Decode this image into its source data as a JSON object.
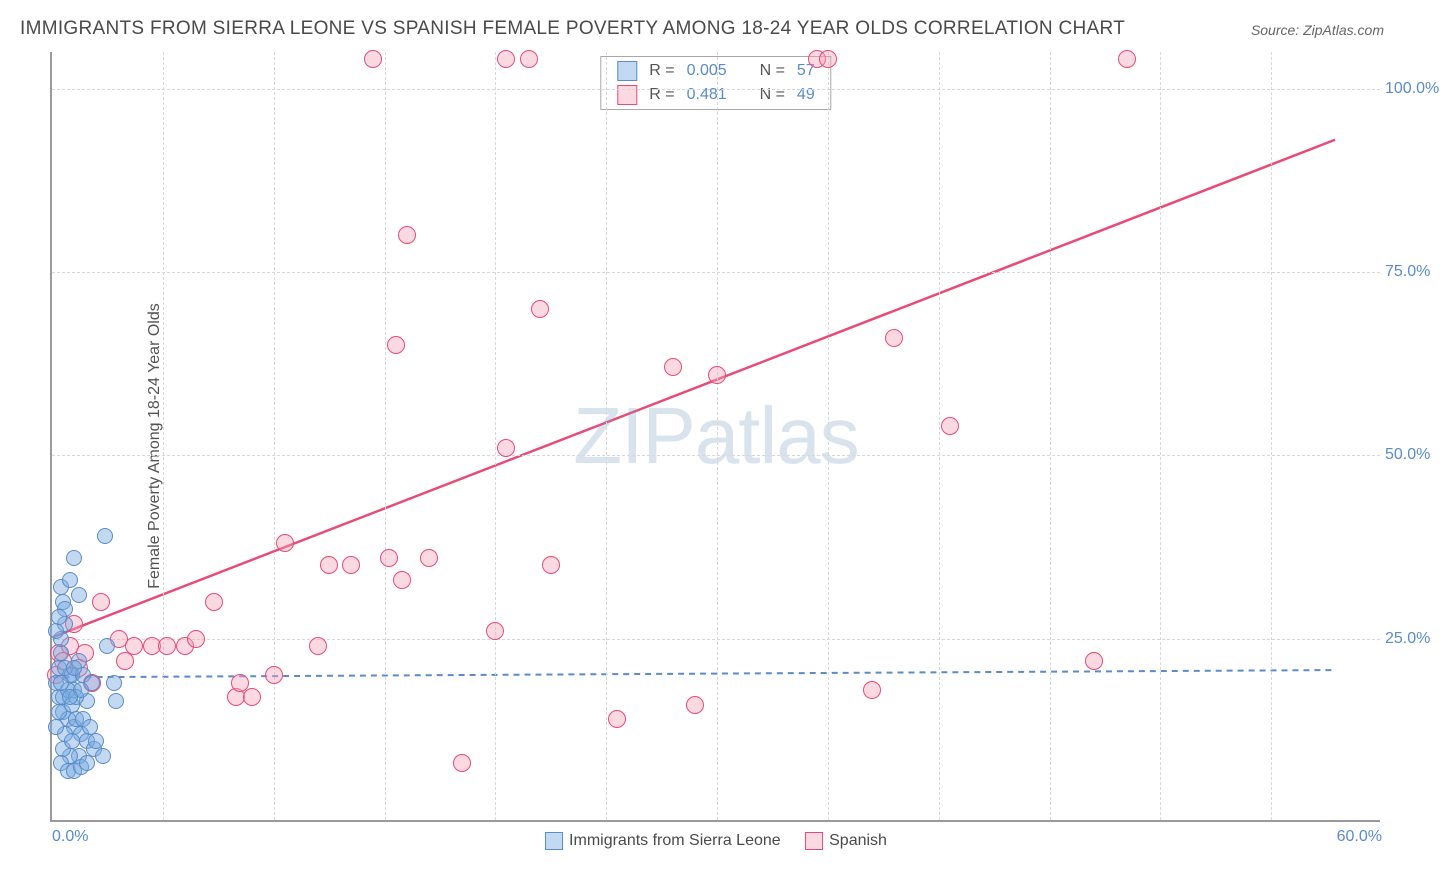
{
  "title": "IMMIGRANTS FROM SIERRA LEONE VS SPANISH FEMALE POVERTY AMONG 18-24 YEAR OLDS CORRELATION CHART",
  "source_label": "Source: ZipAtlas.com",
  "y_axis_title": "Female Poverty Among 18-24 Year Olds",
  "watermark_zip": "ZIP",
  "watermark_atlas": "atlas",
  "chart": {
    "type": "scatter",
    "xlim": [
      0,
      60
    ],
    "ylim": [
      0,
      105
    ],
    "yticks": [
      25,
      50,
      75,
      100
    ],
    "ytick_labels": [
      "25.0%",
      "50.0%",
      "75.0%",
      "100.0%"
    ],
    "xticks": [
      0,
      60
    ],
    "xtick_labels": [
      "0.0%",
      "60.0%"
    ],
    "x_minor_gridlines": [
      5,
      10,
      15,
      20,
      25,
      30,
      35,
      40,
      45,
      50,
      55
    ],
    "grid_color": "#d8d8d8",
    "background_color": "#ffffff",
    "axis_color": "#9a9a9a",
    "tick_label_color": "#5b8bc9",
    "tick_fontsize": 16,
    "title_fontsize": 19,
    "title_color": "#4a4a4a"
  },
  "series": {
    "blue": {
      "label": "Immigrants from Sierra Leone",
      "fill_color": "rgba(120,170,225,0.45)",
      "stroke_color": "#5b8bc9",
      "marker_radius": 8,
      "R": "0.005",
      "N": "57",
      "trend": {
        "x1": 0,
        "y1": 19.5,
        "x2": 58,
        "y2": 20.5,
        "color": "#5b8bc9",
        "width": 2,
        "dash": "6,5"
      },
      "points": [
        [
          0.3,
          21
        ],
        [
          0.4,
          23
        ],
        [
          0.6,
          27
        ],
        [
          0.5,
          30
        ],
        [
          0.2,
          19
        ],
        [
          0.8,
          20
        ],
        [
          1.0,
          18
        ],
        [
          1.2,
          22
        ],
        [
          0.4,
          25
        ],
        [
          0.6,
          29
        ],
        [
          0.3,
          17
        ],
        [
          0.9,
          20
        ],
        [
          1.4,
          20
        ],
        [
          1.6,
          16.5
        ],
        [
          1.8,
          19
        ],
        [
          2.8,
          19
        ],
        [
          2.9,
          16.5
        ],
        [
          0.5,
          15
        ],
        [
          0.7,
          14
        ],
        [
          1.0,
          13
        ],
        [
          1.3,
          12
        ],
        [
          1.6,
          11
        ],
        [
          1.9,
          10
        ],
        [
          1.2,
          9
        ],
        [
          0.8,
          9
        ],
        [
          0.5,
          10
        ],
        [
          0.6,
          12
        ],
        [
          0.9,
          11
        ],
        [
          1.1,
          14
        ],
        [
          1.4,
          14
        ],
        [
          1.7,
          13
        ],
        [
          2.0,
          11
        ],
        [
          2.3,
          9
        ],
        [
          0.4,
          8
        ],
        [
          0.7,
          7
        ],
        [
          1.0,
          7
        ],
        [
          1.3,
          7.5
        ],
        [
          1.6,
          8
        ],
        [
          0.2,
          13
        ],
        [
          0.3,
          15
        ],
        [
          0.5,
          17
        ],
        [
          0.7,
          18
        ],
        [
          0.9,
          16
        ],
        [
          1.1,
          17
        ],
        [
          1.3,
          18
        ],
        [
          0.2,
          26
        ],
        [
          0.4,
          32
        ],
        [
          0.8,
          33
        ],
        [
          1.0,
          36
        ],
        [
          1.2,
          31
        ],
        [
          0.3,
          28
        ],
        [
          2.5,
          24
        ],
        [
          2.4,
          39
        ],
        [
          0.6,
          21
        ],
        [
          0.4,
          19
        ],
        [
          0.8,
          17
        ],
        [
          1.0,
          21
        ]
      ]
    },
    "pink": {
      "label": "Spanish",
      "fill_color": "rgba(245,160,185,0.40)",
      "stroke_color": "#e94b77",
      "marker_radius": 9,
      "R": "0.481",
      "N": "49",
      "trend": {
        "x1": 0,
        "y1": 25,
        "x2": 58,
        "y2": 93,
        "color": "#e94b77",
        "width": 2.5,
        "dash": null
      },
      "points": [
        [
          0.2,
          20
        ],
        [
          0.3,
          23
        ],
        [
          0.5,
          22
        ],
        [
          0.8,
          24
        ],
        [
          1.0,
          27
        ],
        [
          1.2,
          21
        ],
        [
          1.5,
          23
        ],
        [
          1.8,
          19
        ],
        [
          2.2,
          30
        ],
        [
          3.0,
          25
        ],
        [
          3.3,
          22
        ],
        [
          3.7,
          24
        ],
        [
          4.5,
          24
        ],
        [
          5.2,
          24
        ],
        [
          6.0,
          24
        ],
        [
          6.5,
          25
        ],
        [
          7.3,
          30
        ],
        [
          8.3,
          17
        ],
        [
          8.5,
          19
        ],
        [
          9.0,
          17
        ],
        [
          10.0,
          20
        ],
        [
          12.0,
          24
        ],
        [
          12.5,
          35
        ],
        [
          13.5,
          35
        ],
        [
          15.2,
          36
        ],
        [
          15.8,
          33
        ],
        [
          17.0,
          36
        ],
        [
          18.5,
          8
        ],
        [
          20.0,
          26
        ],
        [
          20.5,
          51
        ],
        [
          22.0,
          70
        ],
        [
          22.5,
          35
        ],
        [
          25.5,
          14
        ],
        [
          28.0,
          62
        ],
        [
          29.0,
          16
        ],
        [
          30.0,
          61
        ],
        [
          37.0,
          18
        ],
        [
          38.0,
          66
        ],
        [
          40.5,
          54
        ],
        [
          47.0,
          22
        ],
        [
          48.5,
          104
        ],
        [
          34.5,
          104
        ],
        [
          35.0,
          104
        ],
        [
          20.5,
          104
        ],
        [
          21.5,
          104
        ],
        [
          14.5,
          104
        ],
        [
          16.0,
          80
        ],
        [
          15.5,
          65
        ],
        [
          10.5,
          38
        ]
      ]
    }
  },
  "legend_top": {
    "r_label": "R =",
    "n_label": "N ="
  },
  "legend_bottom": {
    "items": [
      "blue",
      "pink"
    ]
  }
}
